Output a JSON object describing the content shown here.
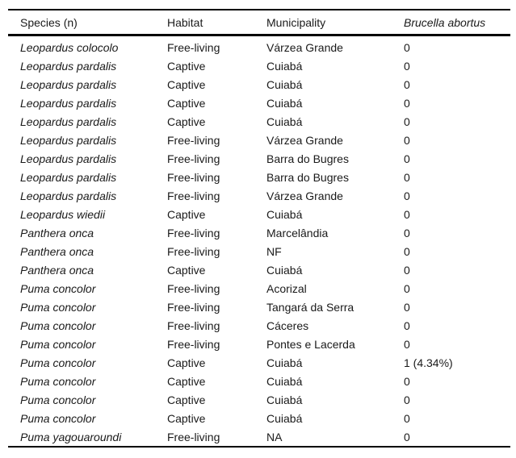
{
  "colors": {
    "background": "#ffffff",
    "text": "#1a1a1a",
    "rule": "#000000"
  },
  "table": {
    "columns": [
      {
        "key": "species",
        "label": "Species (n)",
        "italic": false
      },
      {
        "key": "habitat",
        "label": "Habitat",
        "italic": false
      },
      {
        "key": "municipality",
        "label": "Municipality",
        "italic": false
      },
      {
        "key": "brucella",
        "label": "Brucella abortus",
        "italic": true
      }
    ],
    "rows": [
      {
        "species": "Leopardus colocolo",
        "habitat": "Free-living",
        "municipality": "Várzea Grande",
        "brucella": "0"
      },
      {
        "species": "Leopardus pardalis",
        "habitat": "Captive",
        "municipality": "Cuiabá",
        "brucella": "0"
      },
      {
        "species": "Leopardus pardalis",
        "habitat": "Captive",
        "municipality": "Cuiabá",
        "brucella": "0"
      },
      {
        "species": "Leopardus pardalis",
        "habitat": "Captive",
        "municipality": "Cuiabá",
        "brucella": "0"
      },
      {
        "species": "Leopardus pardalis",
        "habitat": "Captive",
        "municipality": "Cuiabá",
        "brucella": "0"
      },
      {
        "species": "Leopardus pardalis",
        "habitat": "Free-living",
        "municipality": "Várzea Grande",
        "brucella": "0"
      },
      {
        "species": "Leopardus pardalis",
        "habitat": "Free-living",
        "municipality": "Barra do Bugres",
        "brucella": "0"
      },
      {
        "species": "Leopardus pardalis",
        "habitat": "Free-living",
        "municipality": "Barra do Bugres",
        "brucella": "0"
      },
      {
        "species": "Leopardus pardalis",
        "habitat": "Free-living",
        "municipality": "Várzea Grande",
        "brucella": "0"
      },
      {
        "species": "Leopardus wiedii",
        "habitat": "Captive",
        "municipality": "Cuiabá",
        "brucella": "0"
      },
      {
        "species": "Panthera onca",
        "habitat": "Free-living",
        "municipality": "Marcelândia",
        "brucella": "0"
      },
      {
        "species": "Panthera onca",
        "habitat": "Free-living",
        "municipality": "NF",
        "brucella": "0"
      },
      {
        "species": "Panthera onca",
        "habitat": "Captive",
        "municipality": "Cuiabá",
        "brucella": "0"
      },
      {
        "species": "Puma concolor",
        "habitat": "Free-living",
        "municipality": "Acorizal",
        "brucella": "0"
      },
      {
        "species": "Puma concolor",
        "habitat": "Free-living",
        "municipality": "Tangará da Serra",
        "brucella": "0"
      },
      {
        "species": "Puma concolor",
        "habitat": "Free-living",
        "municipality": "Cáceres",
        "brucella": "0"
      },
      {
        "species": "Puma concolor",
        "habitat": "Free-living",
        "municipality": "Pontes e Lacerda",
        "brucella": "0"
      },
      {
        "species": "Puma concolor",
        "habitat": "Captive",
        "municipality": "Cuiabá",
        "brucella": "1 (4.34%)"
      },
      {
        "species": "Puma concolor",
        "habitat": "Captive",
        "municipality": "Cuiabá",
        "brucella": "0"
      },
      {
        "species": "Puma concolor",
        "habitat": "Captive",
        "municipality": "Cuiabá",
        "brucella": "0"
      },
      {
        "species": "Puma concolor",
        "habitat": "Captive",
        "municipality": "Cuiabá",
        "brucella": "0"
      },
      {
        "species": "Puma yagouaroundi",
        "habitat": "Free-living",
        "municipality": "NA",
        "brucella": "0"
      }
    ]
  }
}
